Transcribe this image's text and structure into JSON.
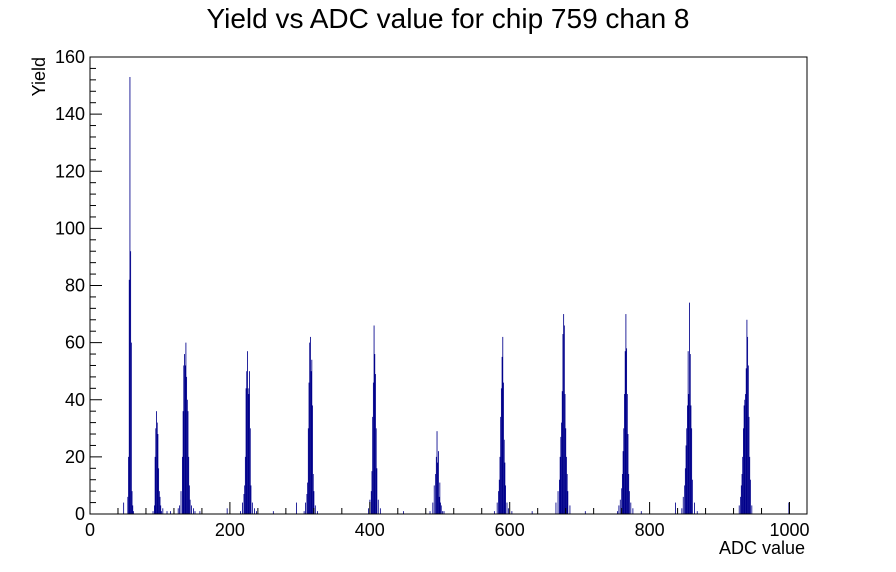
{
  "chart_data": {
    "type": "bar",
    "title": "Yield vs ADC value for chip 759 chan 8",
    "xlabel": "ADC value",
    "ylabel": "Yield",
    "xlim": [
      0,
      1025
    ],
    "ylim": [
      0,
      160
    ],
    "x_ticks": [
      0,
      200,
      400,
      600,
      800,
      1000
    ],
    "y_ticks": [
      0,
      20,
      40,
      60,
      80,
      100,
      120,
      140,
      160
    ],
    "grid": false,
    "legend": "none",
    "series": [
      {
        "color": "#00008b",
        "x": [
          48,
          54,
          55,
          56,
          57,
          58,
          59,
          60,
          61,
          62,
          90,
          92,
          93,
          94,
          95,
          96,
          97,
          98,
          99,
          100,
          101,
          102,
          104,
          110,
          115,
          120,
          126,
          128,
          130,
          132,
          133,
          134,
          135,
          136,
          137,
          138,
          139,
          140,
          141,
          142,
          143,
          145,
          148,
          150,
          157,
          196,
          215,
          218,
          220,
          221,
          222,
          223,
          224,
          225,
          226,
          227,
          228,
          229,
          230,
          232,
          235,
          238,
          262,
          295,
          306,
          308,
          310,
          311,
          312,
          313,
          314,
          315,
          316,
          317,
          318,
          319,
          320,
          322,
          325,
          398,
          400,
          402,
          403,
          404,
          405,
          406,
          407,
          408,
          409,
          410,
          412,
          415,
          448,
          486,
          490,
          492,
          494,
          495,
          496,
          497,
          498,
          499,
          500,
          501,
          502,
          504,
          506,
          578,
          582,
          584,
          585,
          586,
          587,
          588,
          589,
          590,
          591,
          592,
          593,
          594,
          596,
          598,
          603,
          632,
          666,
          669,
          671,
          672,
          673,
          674,
          675,
          676,
          677,
          678,
          679,
          680,
          681,
          682,
          683,
          686,
          708,
          754,
          756,
          758,
          760,
          761,
          762,
          763,
          764,
          765,
          766,
          767,
          768,
          769,
          770,
          771,
          773,
          776,
          788,
          837,
          846,
          848,
          850,
          851,
          852,
          853,
          854,
          855,
          856,
          857,
          858,
          859,
          860,
          861,
          864,
          868,
          928,
          930,
          931,
          932,
          933,
          934,
          935,
          936,
          937,
          938,
          939,
          940,
          941,
          942,
          943,
          944,
          946,
          999
        ],
        "values": [
          4,
          6,
          20,
          82,
          153,
          92,
          60,
          8,
          3,
          1,
          1,
          3,
          20,
          30,
          36,
          32,
          28,
          16,
          8,
          6,
          3,
          1,
          2,
          1,
          1,
          1,
          2,
          3,
          8,
          20,
          36,
          52,
          56,
          52,
          60,
          48,
          40,
          36,
          20,
          10,
          5,
          3,
          2,
          1,
          1,
          2,
          1,
          4,
          7,
          10,
          20,
          44,
          50,
          57,
          44,
          42,
          50,
          30,
          10,
          4,
          2,
          1,
          1,
          4,
          1,
          4,
          7,
          11,
          30,
          46,
          60,
          62,
          50,
          54,
          38,
          14,
          8,
          3,
          1,
          2,
          5,
          8,
          15,
          34,
          46,
          66,
          56,
          49,
          30,
          16,
          5,
          2,
          1,
          1,
          4,
          10,
          14,
          20,
          29,
          18,
          22,
          6,
          11,
          4,
          3,
          1,
          1,
          1,
          4,
          8,
          12,
          20,
          34,
          44,
          55,
          62,
          46,
          26,
          18,
          10,
          4,
          2,
          1,
          1,
          4,
          8,
          12,
          20,
          27,
          32,
          43,
          63,
          70,
          66,
          42,
          30,
          20,
          14,
          8,
          3,
          1,
          1,
          3,
          5,
          9,
          14,
          22,
          30,
          42,
          57,
          70,
          58,
          42,
          28,
          14,
          8,
          4,
          2,
          1,
          4,
          2,
          6,
          10,
          16,
          24,
          30,
          38,
          57,
          42,
          74,
          56,
          38,
          30,
          12,
          4,
          1,
          3,
          6,
          10,
          14,
          20,
          30,
          38,
          40,
          42,
          51,
          68,
          62,
          52,
          34,
          20,
          12,
          3,
          4
        ]
      }
    ]
  }
}
